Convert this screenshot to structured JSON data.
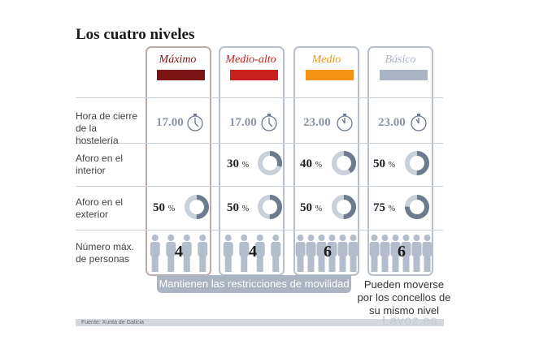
{
  "title": "Los cuatro niveles",
  "columns": [
    {
      "name": "Máximo",
      "color": "#7b1414",
      "time": "17.00",
      "interior": "",
      "exterior": "50",
      "exterior_unit": "%",
      "people": "4"
    },
    {
      "name": "Medio-alto",
      "color": "#c8201e",
      "time": "17.00",
      "interior": "30",
      "interior_unit": "%",
      "exterior": "50",
      "exterior_unit": "%",
      "people": "4"
    },
    {
      "name": "Medio",
      "color": "#f39214",
      "time": "23.00",
      "interior": "40",
      "interior_unit": "%",
      "exterior": "50",
      "exterior_unit": "%",
      "people": "6"
    },
    {
      "name": "Básico",
      "color": "#a9b3c2",
      "time": "23.00",
      "interior": "50",
      "interior_unit": "%",
      "exterior": "75",
      "exterior_unit": "%",
      "people": "6"
    }
  ],
  "rows": {
    "closing": "Hora de cierre de la hostelería",
    "interior": "Aforo en el interior",
    "exterior": "Aforo en el exterior",
    "people": "Número máx. de personas"
  },
  "banner": "Mantienen las restricciones de movilidad",
  "note": "Pueden moverse por los concellos de su mismo nivel",
  "source": "Fuente: Xunta de Galicia",
  "brand": "Lavoz.es",
  "colors": {
    "border": "#b7c0cc",
    "gray": "#8a94a2",
    "donut_fill": "#6e7b8e",
    "donut_empty": "#c8d0da",
    "people": "#b3bdcb"
  }
}
